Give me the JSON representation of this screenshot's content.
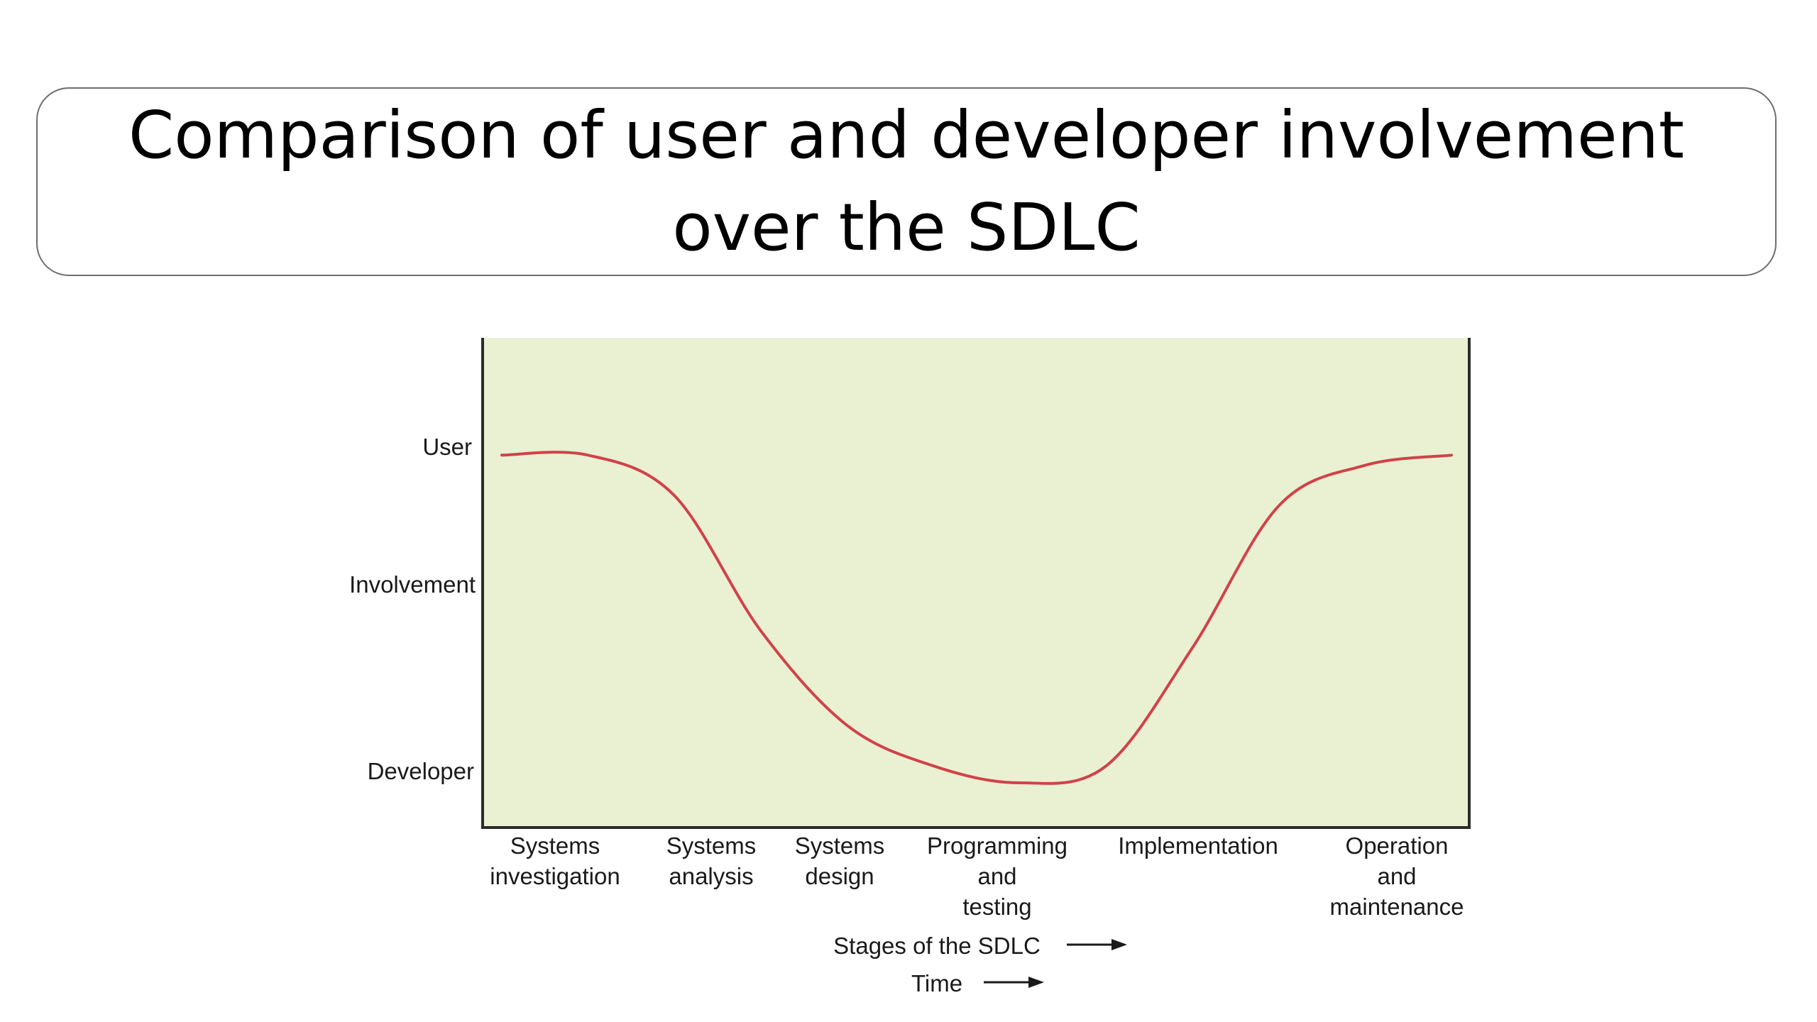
{
  "title": "Comparison of user and developer involvement over the SDLC",
  "colors": {
    "plot_background": "#e9f1d2",
    "curve": "#d1424a",
    "axis": "#2b2b2b",
    "text": "#1a1a1a"
  },
  "chart_data": {
    "type": "line",
    "title": "Comparison of user and developer involvement over the SDLC",
    "y_tick_labels": [
      "User",
      "Involvement",
      "Developer"
    ],
    "x_categories": [
      [
        "Systems",
        "investigation"
      ],
      [
        "Systems",
        "analysis"
      ],
      [
        "Systems",
        "design"
      ],
      [
        "Programming",
        "and",
        "testing"
      ],
      [
        "Implementation"
      ],
      [
        "Operation",
        "and",
        "maintenance"
      ]
    ],
    "x_axis_labels": [
      {
        "text": "Stages of the SDLC",
        "arrow": true
      },
      {
        "text": "Time",
        "arrow": true
      }
    ],
    "ylim": [
      0,
      1
    ],
    "y_scale_note": "1 = User involvement, 0 = Developer involvement",
    "series": [
      {
        "x": [
          0.0,
          0.5,
          1.0,
          1.5,
          2.0,
          2.5,
          3.0,
          3.5,
          4.0,
          4.5,
          5.0,
          5.5
        ],
        "y": [
          0.97,
          0.97,
          0.85,
          0.45,
          0.17,
          0.05,
          0.0,
          0.05,
          0.4,
          0.82,
          0.94,
          0.97
        ]
      }
    ],
    "grid": false,
    "legend": "none"
  }
}
